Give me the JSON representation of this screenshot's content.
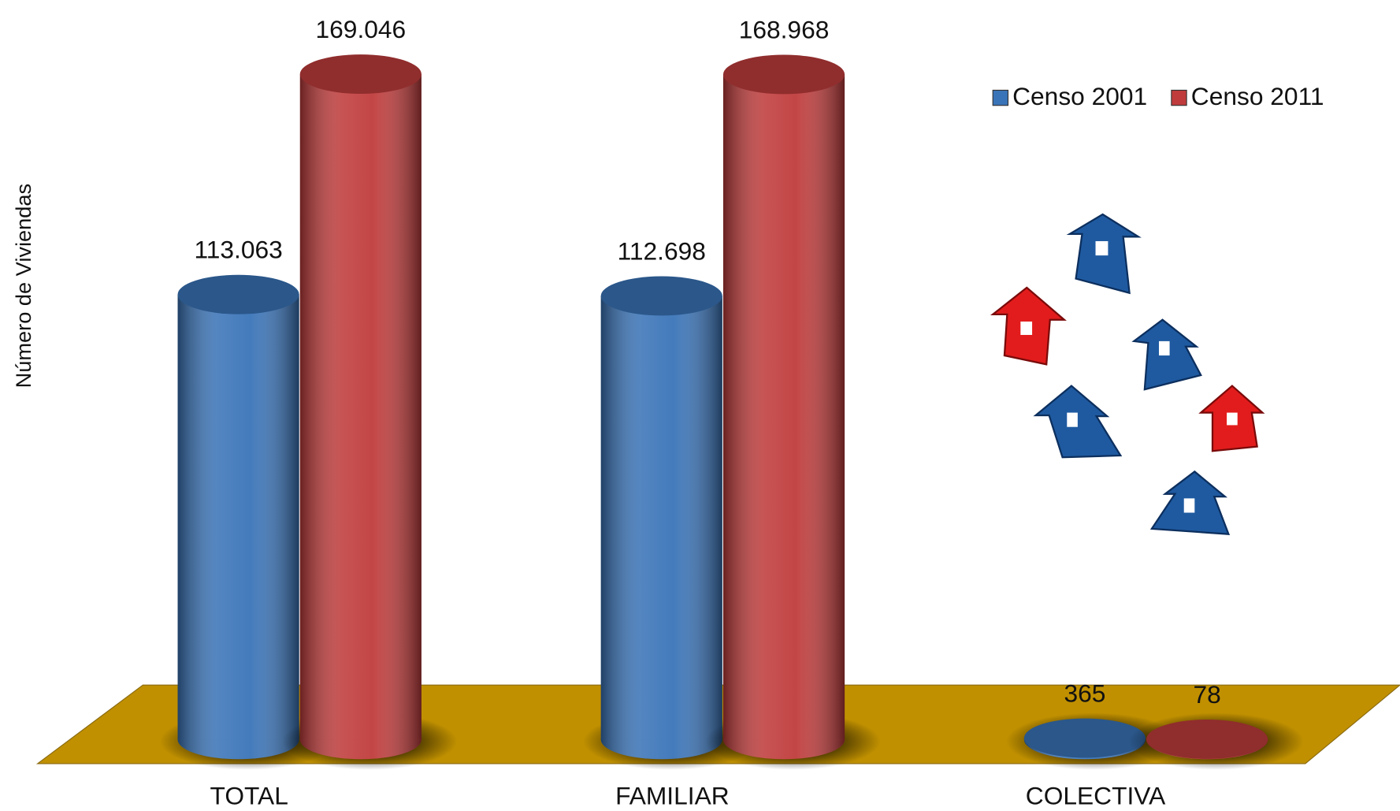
{
  "chart_data": {
    "type": "bar",
    "y_label": "Número de Viviendas",
    "categories": [
      "TOTAL",
      "FAMILIAR",
      "COLECTIVA"
    ],
    "series": [
      {
        "name": "Censo 2001",
        "color": "#3a74b8",
        "values": [
          113063,
          112698,
          365
        ],
        "value_labels": [
          "113.063",
          "112.698",
          "365"
        ]
      },
      {
        "name": "Censo 2011",
        "color": "#c03c3c",
        "values": [
          169046,
          168968,
          78
        ],
        "value_labels": [
          "169.046",
          "168.968",
          "78"
        ]
      }
    ],
    "legend": "top-right"
  }
}
